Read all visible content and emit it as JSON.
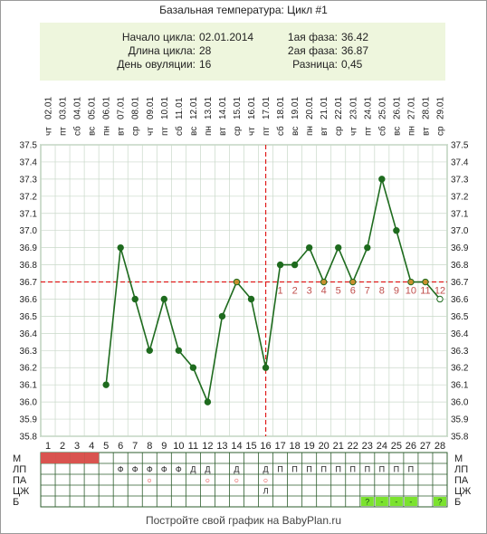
{
  "title": "Базальная температура: Цикл #1",
  "info": {
    "start_label": "Начало цикла:",
    "start_value": "02.01.2014",
    "length_label": "Длина цикла:",
    "length_value": "28",
    "ovulation_label": "День овуляции:",
    "ovulation_value": "16",
    "phase1_label": "1ая фаза:",
    "phase1_value": "36.42",
    "phase2_label": "2ая фаза:",
    "phase2_value": "36.87",
    "diff_label": "Разница:",
    "diff_value": "0,45"
  },
  "footer": "Постройте свой график на BabyPlan.ru",
  "chart_data": {
    "type": "line",
    "dates": [
      "02.01",
      "03.01",
      "04.01",
      "05.01",
      "06.01",
      "07.01",
      "08.01",
      "09.01",
      "10.01",
      "11.01",
      "12.01",
      "13.01",
      "14.01",
      "15.01",
      "16.01",
      "17.01",
      "18.01",
      "19.01",
      "20.01",
      "21.01",
      "22.01",
      "23.01",
      "24.01",
      "25.01",
      "26.01",
      "27.01",
      "28.01",
      "29.01"
    ],
    "weekdays": [
      "чт",
      "пт",
      "сб",
      "вс",
      "пн",
      "вт",
      "ср",
      "чт",
      "пт",
      "сб",
      "вс",
      "пн",
      "вт",
      "ср",
      "чт",
      "пт",
      "сб",
      "вс",
      "пн",
      "вт",
      "ср",
      "чт",
      "пт",
      "сб",
      "вс",
      "пн",
      "вт",
      "ср"
    ],
    "cycle_days": [
      "1",
      "2",
      "3",
      "4",
      "5",
      "6",
      "7",
      "8",
      "9",
      "10",
      "11",
      "12",
      "13",
      "14",
      "15",
      "16",
      "17",
      "18",
      "19",
      "20",
      "21",
      "22",
      "23",
      "24",
      "25",
      "26",
      "27",
      "28"
    ],
    "temperatures": [
      null,
      null,
      null,
      null,
      36.1,
      36.9,
      36.6,
      36.3,
      36.6,
      36.3,
      36.2,
      36.0,
      36.5,
      36.7,
      36.6,
      36.2,
      36.8,
      36.8,
      36.9,
      36.7,
      36.9,
      36.7,
      36.9,
      37.3,
      37.0,
      36.7,
      36.7,
      36.6
    ],
    "ylim": [
      35.8,
      37.5
    ],
    "yticks": [
      "35.8",
      "35.9",
      "36.0",
      "36.1",
      "36.2",
      "36.3",
      "36.4",
      "36.5",
      "36.6",
      "36.7",
      "36.8",
      "36.9",
      "37.0",
      "37.1",
      "37.2",
      "37.3",
      "37.4",
      "37.5"
    ],
    "coverline": 36.7,
    "ovulation_day": 16,
    "post_ovulation_labels": [
      "1",
      "2",
      "3",
      "4",
      "5",
      "6",
      "7",
      "8",
      "9",
      "10",
      "11",
      "12"
    ],
    "row_labels": [
      "М",
      "ЛП",
      "ПА",
      "ЦЖ",
      "Б"
    ],
    "menstruation_days": [
      1,
      2,
      3,
      4
    ],
    "lp_row": [
      "",
      "",
      "",
      "",
      "",
      "Ф",
      "Ф",
      "Ф",
      "Ф",
      "Ф",
      "Д",
      "Д",
      "",
      "Д",
      "",
      "Д",
      "П",
      "П",
      "П",
      "П",
      "П",
      "П",
      "П",
      "П",
      "П",
      "П",
      "",
      ""
    ],
    "pa_row": [
      "",
      "",
      "",
      "",
      "",
      "",
      "",
      "○",
      "",
      "",
      "",
      "○",
      "",
      "○",
      "",
      "○",
      "",
      "",
      "",
      "",
      "",
      "",
      "",
      "",
      "",
      "",
      "",
      ""
    ],
    "czh_row": [
      "",
      "",
      "",
      "",
      "",
      "",
      "",
      "",
      "",
      "",
      "",
      "",
      "",
      "",
      "",
      "Л",
      "",
      "",
      "",
      "",
      "",
      "",
      "",
      "",
      "",
      "",
      "",
      ""
    ],
    "b_row": [
      "",
      "",
      "",
      "",
      "",
      "",
      "",
      "",
      "",
      "",
      "",
      "",
      "",
      "",
      "",
      "",
      "",
      "",
      "",
      "",
      "",
      "",
      "?",
      "-",
      "-",
      "-",
      "",
      "?"
    ],
    "colors": {
      "line": "#1e6b1e",
      "coverline": "#e01b1b",
      "menstruation": "#d9544f",
      "test": "#7be32e",
      "grid": "#3b7a3b",
      "day_label": "#c0504d"
    }
  }
}
